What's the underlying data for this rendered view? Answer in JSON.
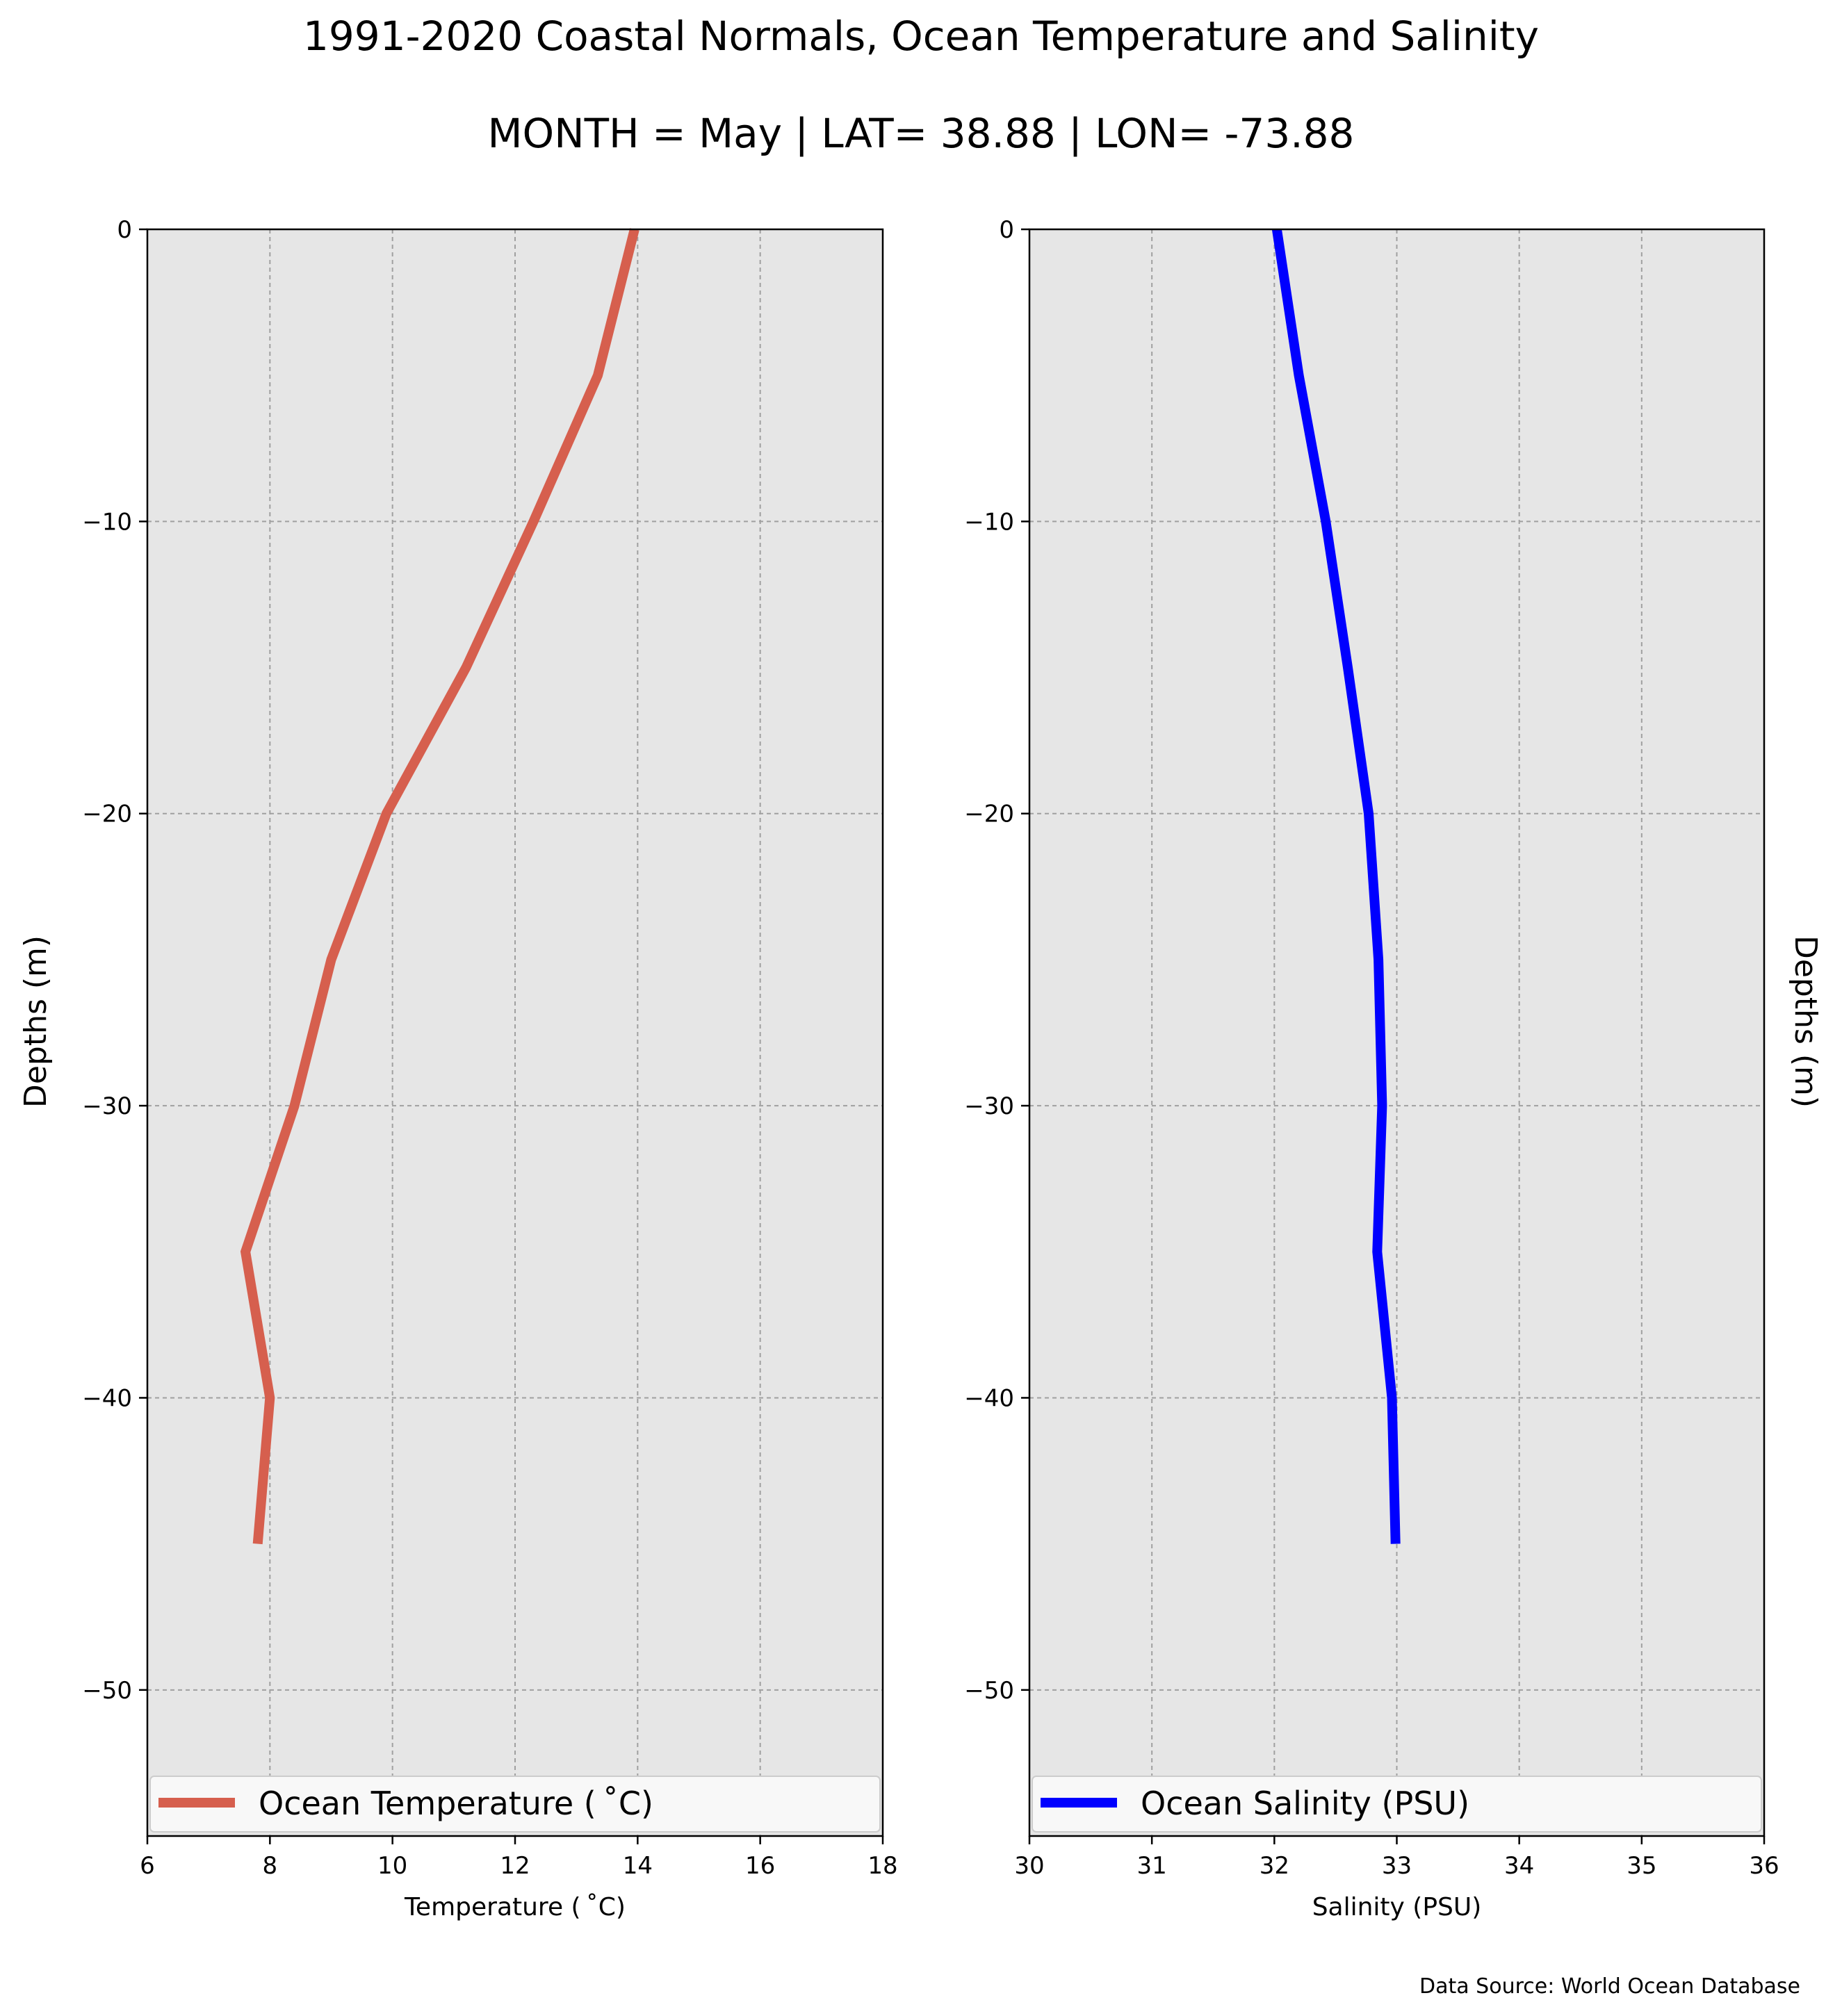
{
  "title": "1991-2020 Coastal Normals, Ocean Temperature and Salinity",
  "subtitle": "MONTH = May | LAT= 38.88 | LON= -73.88",
  "source": "Data Source: World Ocean Database",
  "colors": {
    "background": "#e6e6e6",
    "temperature": "#d65f4e",
    "salinity": "#0000ff",
    "grid": "#a0a0a0"
  },
  "chart_data": [
    {
      "type": "line",
      "xlabel": "Temperature ($^\\circ$C)",
      "xlabel_display": "Temperature ( ˚C)",
      "ylabel": "Depths (m)",
      "xlim": [
        6,
        18
      ],
      "ylim": [
        -55,
        0
      ],
      "xticks": [
        "6",
        "8",
        "10",
        "12",
        "14",
        "16",
        "18"
      ],
      "yticks": [
        "0",
        "−10",
        "−20",
        "−30",
        "−40",
        "−50"
      ],
      "grid": true,
      "legend_position": "bottom",
      "series": [
        {
          "name": "Ocean Temperature ( ˚C)",
          "x": [
            13.95,
            13.35,
            12.3,
            11.2,
            9.9,
            9.0,
            8.4,
            7.6,
            8.0,
            7.8
          ],
          "y": [
            0,
            -5,
            -10,
            -15,
            -20,
            -25,
            -30,
            -35,
            -40,
            -45
          ]
        }
      ]
    },
    {
      "type": "line",
      "xlabel": "Salinity (PSU)",
      "xlabel_display": "Salinity (PSU)",
      "ylabel": "Depths (m)",
      "xlim": [
        30,
        36
      ],
      "ylim": [
        -55,
        0
      ],
      "xticks": [
        "30",
        "31",
        "32",
        "33",
        "34",
        "35",
        "36"
      ],
      "yticks": [
        "0",
        "−10",
        "−20",
        "−30",
        "−40",
        "−50"
      ],
      "grid": true,
      "legend_position": "bottom",
      "series": [
        {
          "name": "Ocean Salinity (PSU)",
          "x": [
            32.02,
            32.2,
            32.42,
            32.6,
            32.77,
            32.85,
            32.88,
            32.84,
            32.96,
            32.99
          ],
          "y": [
            0,
            -5,
            -10,
            -15,
            -20,
            -25,
            -30,
            -35,
            -40,
            -45
          ]
        }
      ]
    }
  ]
}
